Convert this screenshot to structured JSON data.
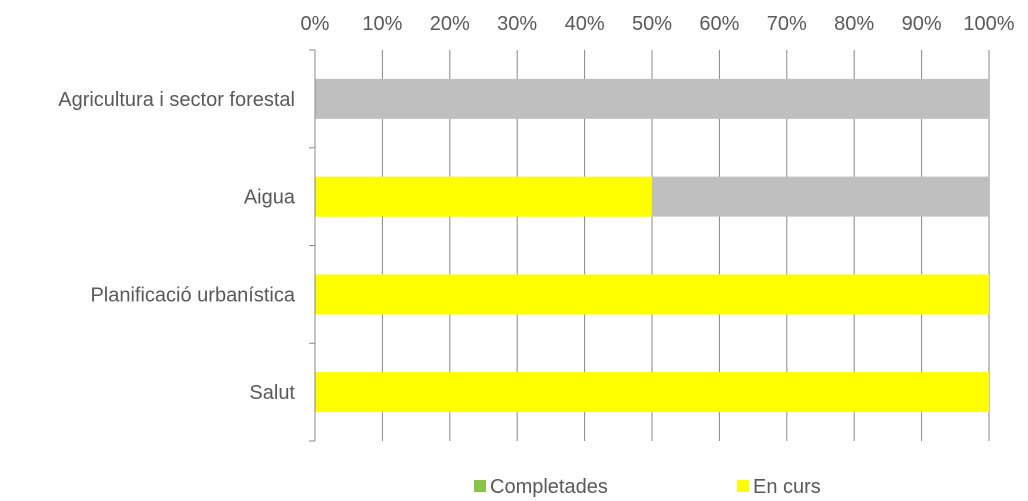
{
  "chart_data": {
    "type": "bar",
    "orientation": "horizontal",
    "stacked": "percent",
    "categories": [
      "Agricultura i sector forestal",
      "Aigua",
      "Planificació urbanística",
      "Salut"
    ],
    "series": [
      {
        "name": "Completades",
        "values": [
          0,
          0,
          0,
          0
        ],
        "color": "#8BC34A"
      },
      {
        "name": "En curs",
        "values": [
          0,
          50,
          100,
          100
        ],
        "color": "#FFFF00"
      },
      {
        "values": [
          100,
          50,
          0,
          0
        ],
        "color": "#BFBFBF"
      }
    ],
    "xlim": [
      0,
      100
    ],
    "x_ticks": [
      "0%",
      "10%",
      "20%",
      "30%",
      "40%",
      "50%",
      "60%",
      "70%",
      "80%",
      "90%",
      "100%"
    ],
    "x_axis_position": "top",
    "grid": true,
    "legend_position": "bottom"
  }
}
